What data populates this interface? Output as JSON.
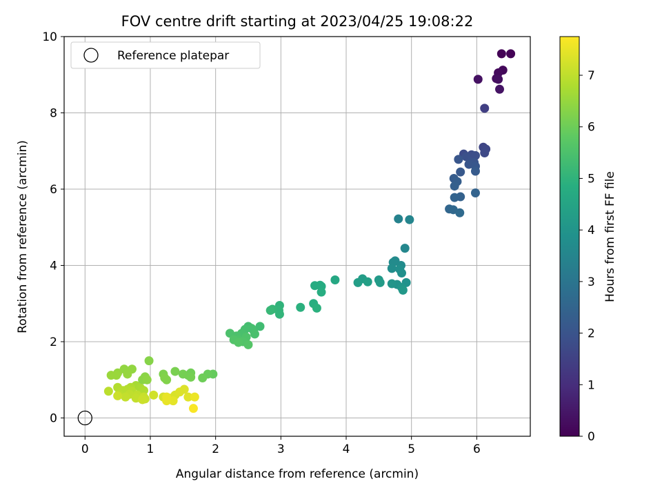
{
  "chart_data": {
    "type": "scatter",
    "title": "FOV centre drift starting at 2023/04/25 19:08:22",
    "xlabel": "Angular distance from reference (arcmin)",
    "ylabel": "Rotation from reference (arcmin)",
    "xlim": [
      -0.32,
      6.82
    ],
    "ylim": [
      -0.48,
      10.0
    ],
    "x_ticks": [
      0,
      1,
      2,
      3,
      4,
      5,
      6
    ],
    "y_ticks": [
      0,
      2,
      4,
      6,
      8,
      10
    ],
    "grid": true,
    "legend": {
      "position": "upper-left",
      "entries": [
        "Reference platepar"
      ]
    },
    "reference_point": {
      "x": 0,
      "y": 0
    },
    "colorbar": {
      "label": "Hours from first FF file",
      "min": 0,
      "max": 7.75,
      "ticks": [
        0,
        1,
        2,
        3,
        4,
        5,
        6,
        7
      ],
      "colormap": "viridis"
    },
    "points": [
      [
        6.38,
        9.55,
        0.05
      ],
      [
        6.52,
        9.55,
        0.05
      ],
      [
        6.4,
        9.12,
        0.15
      ],
      [
        6.33,
        9.05,
        0.2
      ],
      [
        6.3,
        8.9,
        0.25
      ],
      [
        6.33,
        8.88,
        0.3
      ],
      [
        6.02,
        8.88,
        0.35
      ],
      [
        6.35,
        8.62,
        0.4
      ],
      [
        6.12,
        8.12,
        1.45
      ],
      [
        6.1,
        7.1,
        1.6
      ],
      [
        6.14,
        7.05,
        1.65
      ],
      [
        6.12,
        6.95,
        1.7
      ],
      [
        5.8,
        6.92,
        1.75
      ],
      [
        5.92,
        6.9,
        1.8
      ],
      [
        5.98,
        6.88,
        1.85
      ],
      [
        5.84,
        6.85,
        1.9
      ],
      [
        5.9,
        6.72,
        1.95
      ],
      [
        5.96,
        6.7,
        2.0
      ],
      [
        5.72,
        6.78,
        2.05
      ],
      [
        5.88,
        6.65,
        2.05
      ],
      [
        5.98,
        6.6,
        2.1
      ],
      [
        5.75,
        6.45,
        2.15
      ],
      [
        5.98,
        6.47,
        2.2
      ],
      [
        5.65,
        6.28,
        2.25
      ],
      [
        5.7,
        6.2,
        2.3
      ],
      [
        5.66,
        6.08,
        2.35
      ],
      [
        5.75,
        5.8,
        2.4
      ],
      [
        5.66,
        5.78,
        2.45
      ],
      [
        5.98,
        5.9,
        2.45
      ],
      [
        5.58,
        5.48,
        2.55
      ],
      [
        5.64,
        5.46,
        2.6
      ],
      [
        5.74,
        5.38,
        2.65
      ],
      [
        4.8,
        5.22,
        3.4
      ],
      [
        4.97,
        5.2,
        3.5
      ],
      [
        4.9,
        4.45,
        3.55
      ],
      [
        4.75,
        4.12,
        3.65
      ],
      [
        4.72,
        4.08,
        3.7
      ],
      [
        4.84,
        4.0,
        3.7
      ],
      [
        4.7,
        3.92,
        3.75
      ],
      [
        4.82,
        3.9,
        3.8
      ],
      [
        4.85,
        3.8,
        3.85
      ],
      [
        4.92,
        3.55,
        3.9
      ],
      [
        4.78,
        3.5,
        3.95
      ],
      [
        4.7,
        3.52,
        4.0
      ],
      [
        4.85,
        3.42,
        4.05
      ],
      [
        4.87,
        3.35,
        4.1
      ],
      [
        4.5,
        3.62,
        4.15
      ],
      [
        4.52,
        3.55,
        4.2
      ],
      [
        4.25,
        3.65,
        4.25
      ],
      [
        4.18,
        3.55,
        4.3
      ],
      [
        4.33,
        3.57,
        4.35
      ],
      [
        3.83,
        3.62,
        4.6
      ],
      [
        3.6,
        3.48,
        4.7
      ],
      [
        3.52,
        3.47,
        4.75
      ],
      [
        3.62,
        3.45,
        4.75
      ],
      [
        3.62,
        3.3,
        4.8
      ],
      [
        3.5,
        3.0,
        4.85
      ],
      [
        3.55,
        2.88,
        4.9
      ],
      [
        3.3,
        2.9,
        4.9
      ],
      [
        2.98,
        2.95,
        5.0
      ],
      [
        2.97,
        2.82,
        5.05
      ],
      [
        2.98,
        2.72,
        5.05
      ],
      [
        2.87,
        2.85,
        5.1
      ],
      [
        2.84,
        2.82,
        5.15
      ],
      [
        2.68,
        2.4,
        5.3
      ],
      [
        2.58,
        2.3,
        5.35
      ],
      [
        2.5,
        2.4,
        5.35
      ],
      [
        2.55,
        2.35,
        5.4
      ],
      [
        2.45,
        2.32,
        5.4
      ],
      [
        2.6,
        2.2,
        5.45
      ],
      [
        2.4,
        2.22,
        5.45
      ],
      [
        2.22,
        2.22,
        5.5
      ],
      [
        2.32,
        2.15,
        5.5
      ],
      [
        2.47,
        2.12,
        5.55
      ],
      [
        2.35,
        2.05,
        5.55
      ],
      [
        2.28,
        2.05,
        5.6
      ],
      [
        2.42,
        2.0,
        5.6
      ],
      [
        2.35,
        1.98,
        5.65
      ],
      [
        2.5,
        1.92,
        5.65
      ],
      [
        1.96,
        1.15,
        5.9
      ],
      [
        1.88,
        1.15,
        5.95
      ],
      [
        1.8,
        1.05,
        6.0
      ],
      [
        1.62,
        1.18,
        6.05
      ],
      [
        1.58,
        1.12,
        6.05
      ],
      [
        1.5,
        1.15,
        6.1
      ],
      [
        1.62,
        1.07,
        6.1
      ],
      [
        1.38,
        1.22,
        6.15
      ],
      [
        1.2,
        1.15,
        6.2
      ],
      [
        1.22,
        1.05,
        6.25
      ],
      [
        1.25,
        1.0,
        6.25
      ],
      [
        0.98,
        1.5,
        6.3
      ],
      [
        0.92,
        1.08,
        6.35
      ],
      [
        0.88,
        1.0,
        6.35
      ],
      [
        0.95,
        1.0,
        6.4
      ],
      [
        0.6,
        1.28,
        6.45
      ],
      [
        0.72,
        1.28,
        6.45
      ],
      [
        0.65,
        1.15,
        6.5
      ],
      [
        0.5,
        1.18,
        6.5
      ],
      [
        0.4,
        1.12,
        6.55
      ],
      [
        0.48,
        1.12,
        6.55
      ],
      [
        0.78,
        0.85,
        6.7
      ],
      [
        0.85,
        0.78,
        6.75
      ],
      [
        0.9,
        0.72,
        6.8
      ],
      [
        0.7,
        0.8,
        6.8
      ],
      [
        0.65,
        0.75,
        6.85
      ],
      [
        0.5,
        0.8,
        6.85
      ],
      [
        0.58,
        0.72,
        6.9
      ],
      [
        0.72,
        0.7,
        6.9
      ],
      [
        0.36,
        0.7,
        6.95
      ],
      [
        0.52,
        0.62,
        6.95
      ],
      [
        0.68,
        0.62,
        7.0
      ],
      [
        0.8,
        0.6,
        7.0
      ],
      [
        0.62,
        0.55,
        7.05
      ],
      [
        0.78,
        0.52,
        7.05
      ],
      [
        0.9,
        0.55,
        7.1
      ],
      [
        0.92,
        0.5,
        7.1
      ],
      [
        0.88,
        0.48,
        7.15
      ],
      [
        0.5,
        0.58,
        7.15
      ],
      [
        1.05,
        0.6,
        7.2
      ],
      [
        1.2,
        0.55,
        7.25
      ],
      [
        1.3,
        0.52,
        7.3
      ],
      [
        1.38,
        0.6,
        7.3
      ],
      [
        1.45,
        0.68,
        7.35
      ],
      [
        1.52,
        0.75,
        7.35
      ],
      [
        1.58,
        0.55,
        7.4
      ],
      [
        1.35,
        0.45,
        7.45
      ],
      [
        1.25,
        0.45,
        7.5
      ],
      [
        1.25,
        0.55,
        7.5
      ],
      [
        1.68,
        0.55,
        7.55
      ],
      [
        1.66,
        0.25,
        7.7
      ]
    ]
  }
}
